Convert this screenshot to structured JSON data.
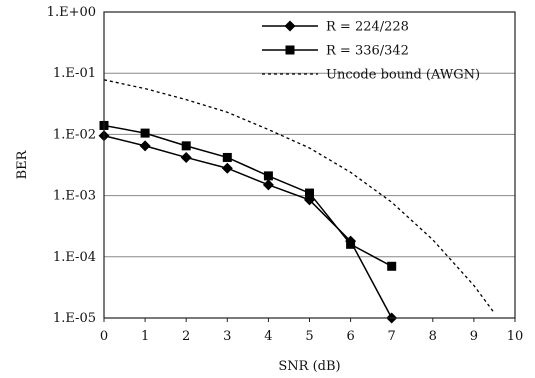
{
  "chart_data": {
    "type": "line",
    "xlabel": "SNR (dB)",
    "ylabel": "BER",
    "xlim": [
      0,
      10
    ],
    "ylim": [
      1e-05,
      1
    ],
    "y_scale": "log",
    "x_ticks": [
      "0",
      "1",
      "2",
      "3",
      "4",
      "5",
      "6",
      "7",
      "8",
      "9",
      "10"
    ],
    "y_ticks": [
      "1.E+00",
      "1.E-01",
      "1.E-02",
      "1.E-03",
      "1.E-04",
      "1.E-05"
    ],
    "grid": "horizontal",
    "legend_position": "top-right",
    "series": [
      {
        "name": "R = 224/228",
        "marker": "diamond",
        "line_style": "solid",
        "color": "#000000",
        "x": [
          0,
          1,
          2,
          3,
          4,
          5,
          6,
          7
        ],
        "y": [
          0.0095,
          0.0065,
          0.0042,
          0.0028,
          0.0015,
          0.00085,
          0.00018,
          1e-05
        ]
      },
      {
        "name": "R = 336/342",
        "marker": "square",
        "line_style": "solid",
        "color": "#000000",
        "x": [
          0,
          1,
          2,
          3,
          4,
          5,
          6,
          7
        ],
        "y": [
          0.014,
          0.0105,
          0.0065,
          0.0042,
          0.0021,
          0.0011,
          0.00016,
          7e-05
        ]
      },
      {
        "name": "Uncode bound (AWGN)",
        "marker": "none",
        "line_style": "dotted",
        "color": "#000000",
        "x": [
          0,
          1,
          2,
          3,
          4,
          5,
          6,
          7,
          8,
          9,
          9.5
        ],
        "y": [
          0.078,
          0.056,
          0.037,
          0.023,
          0.012,
          0.006,
          0.0024,
          0.00078,
          0.00019,
          3.4e-05,
          1.2e-05
        ]
      }
    ]
  }
}
